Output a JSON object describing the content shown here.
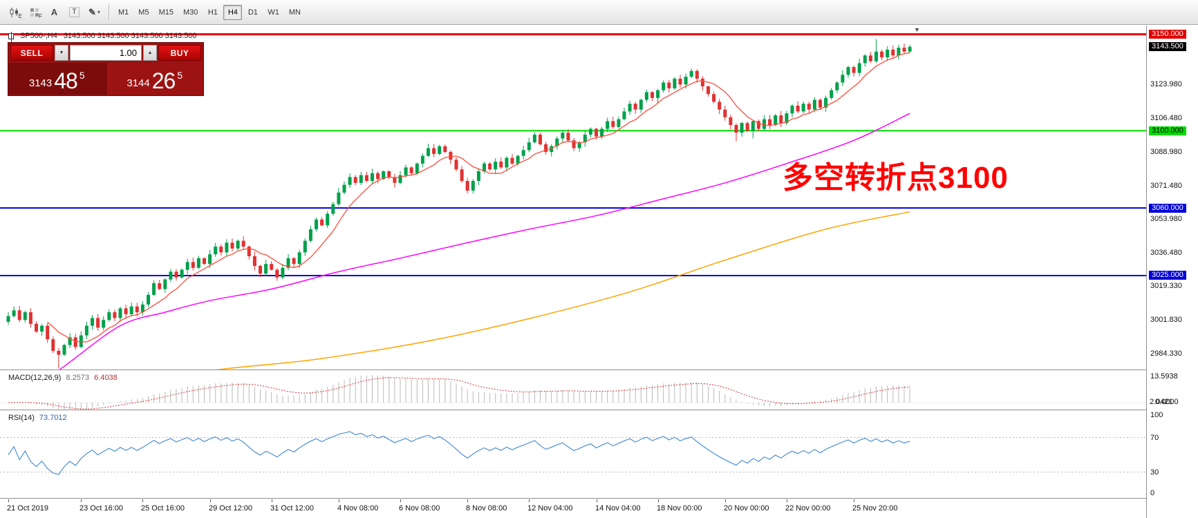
{
  "colors": {
    "up": "#00A14B",
    "down": "#E03232",
    "ma_fast": "#FF4B3A",
    "ma_mid": "#FF00FF",
    "ma_slow": "#FFA500",
    "macd_hist": "#B9B9B9",
    "macd_signal": "#D93030",
    "rsi_line": "#4C8FD6",
    "annotation": "#FF0000"
  },
  "toolbar": {
    "icons": [
      {
        "button": "chart-window-button",
        "icon": "candlestick-chart-icon",
        "glyph": "candles",
        "badge": "E"
      },
      {
        "button": "chart-grid-button",
        "icon": "grid-icon",
        "glyph": "grid",
        "badge": "F"
      },
      {
        "button": "text-annotation-button",
        "icon": "text-icon",
        "glyph": "A"
      },
      {
        "button": "text-box-button",
        "icon": "textbox-icon",
        "glyph": "T",
        "boxed": true
      },
      {
        "button": "drawing-tools-button",
        "icon": "pencil-icon",
        "glyph": "✎",
        "dropdown": true
      }
    ],
    "timeframes": [
      {
        "label": "M1"
      },
      {
        "label": "M5"
      },
      {
        "label": "M15"
      },
      {
        "label": "M30"
      },
      {
        "label": "H1"
      },
      {
        "label": "H4",
        "active": true
      },
      {
        "label": "D1"
      },
      {
        "label": "W1"
      },
      {
        "label": "MN"
      }
    ]
  },
  "chart_header": {
    "title": "SP500-,H4",
    "ohlc": "3143.500 3143.500 3143.500 3143.500"
  },
  "trade_panel": {
    "sell_label": "SELL",
    "buy_label": "BUY",
    "volume": "1.00",
    "down_glyph": "▼",
    "up_glyph": "▲",
    "sell_price_small": "3143",
    "sell_price_big": "48",
    "sell_price_sup": "5",
    "buy_price_small": "3144",
    "buy_price_big": "26",
    "buy_price_sup": "5"
  },
  "annotation": {
    "text": "多空转折点3100"
  },
  "indicator_labels": {
    "macd_title": "MACD(12,26,9)",
    "macd_value_main": "8.2573",
    "macd_value_signal": "6.4038",
    "rsi_title": "RSI(14)",
    "rsi_value": "73.7012"
  },
  "axes": {
    "price": [
      {
        "text": "3150.000",
        "price": 3150.0,
        "bg": "#E00000",
        "fg": "#FFFFFF"
      },
      {
        "text": "3143.500",
        "price": 3143.5,
        "bg": "#000000",
        "fg": "#FFFFFF"
      },
      {
        "text": "3123.980",
        "price": 3123.98
      },
      {
        "text": "3106.480",
        "price": 3106.48
      },
      {
        "text": "3100.000",
        "price": 3100.0,
        "bg": "#00DC00",
        "fg": "#000000"
      },
      {
        "text": "3088.980",
        "price": 3088.98
      },
      {
        "text": "3071.480",
        "price": 3071.48
      },
      {
        "text": "3060.000",
        "price": 3060.0,
        "bg": "#0000D8",
        "fg": "#FFFFFF"
      },
      {
        "text": "3053.980",
        "price": 3053.98
      },
      {
        "text": "3036.480",
        "price": 3036.48
      },
      {
        "text": "3025.000",
        "price": 3025.0,
        "bg": "#0000D8",
        "fg": "#FFFFFF"
      },
      {
        "text": "3019.330",
        "price": 3019.33
      },
      {
        "text": "3001.830",
        "price": 3001.83
      },
      {
        "text": "2984.330",
        "price": 2984.33
      }
    ],
    "macd": {
      "max": "13.5938",
      "zero": "0.0000",
      "min": "2.0421"
    },
    "rsi": [
      "100",
      "70",
      "30",
      "0"
    ]
  },
  "chart_data": {
    "type": "candlestick",
    "symbol": "SP500-",
    "timeframe": "H4",
    "current_price": 3143.5,
    "levels": [
      {
        "price": 3150.0,
        "color": "#F00000",
        "width": 3
      },
      {
        "price": 3100.0,
        "color": "#00DC00",
        "width": 2
      },
      {
        "price": 3060.0,
        "color": "#0000DC",
        "width": 2
      },
      {
        "price": 3025.0,
        "color": "#0000DC",
        "width": 2
      }
    ],
    "time_labels": [
      {
        "text": "21 Oct 2019",
        "bar": 0
      },
      {
        "text": "23 Oct 16:00",
        "bar": 13
      },
      {
        "text": "25 Oct 16:00",
        "bar": 24
      },
      {
        "text": "29 Oct 12:00",
        "bar": 36
      },
      {
        "text": "31 Oct 12:00",
        "bar": 47
      },
      {
        "text": "4 Nov 08:00",
        "bar": 59
      },
      {
        "text": "6 Nov 08:00",
        "bar": 70
      },
      {
        "text": "8 Nov 08:00",
        "bar": 82
      },
      {
        "text": "12 Nov 04:00",
        "bar": 93
      },
      {
        "text": "14 Nov 04:00",
        "bar": 105
      },
      {
        "text": "18 Nov 00:00",
        "bar": 116
      },
      {
        "text": "20 Nov 00:00",
        "bar": 128
      },
      {
        "text": "22 Nov 00:00",
        "bar": 139
      },
      {
        "text": "25 Nov 20:00",
        "bar": 151
      }
    ],
    "candles": {
      "closes": [
        3004,
        3007,
        3002,
        3006,
        3000,
        2996,
        2999,
        2992,
        2986,
        2984,
        2989,
        2993,
        2988,
        2994,
        2999,
        3003,
        2998,
        3002,
        3006,
        3003,
        3008,
        3005,
        3009,
        3006,
        3010,
        3015,
        3021,
        3018,
        3023,
        3027,
        3024,
        3028,
        3032,
        3029,
        3034,
        3031,
        3036,
        3040,
        3037,
        3042,
        3039,
        3043,
        3040,
        3035,
        3030,
        3026,
        3031,
        3028,
        3024,
        3029,
        3034,
        3031,
        3037,
        3043,
        3049,
        3054,
        3051,
        3057,
        3062,
        3068,
        3072,
        3076,
        3073,
        3077,
        3074,
        3078,
        3075,
        3079,
        3076,
        3073,
        3077,
        3081,
        3078,
        3083,
        3087,
        3091,
        3088,
        3092,
        3089,
        3085,
        3080,
        3074,
        3069,
        3074,
        3079,
        3083,
        3080,
        3084,
        3081,
        3086,
        3083,
        3087,
        3090,
        3094,
        3098,
        3093,
        3089,
        3092,
        3096,
        3099,
        3095,
        3091,
        3094,
        3098,
        3101,
        3097,
        3101,
        3105,
        3102,
        3106,
        3110,
        3114,
        3111,
        3116,
        3120,
        3117,
        3121,
        3125,
        3122,
        3127,
        3124,
        3128,
        3131,
        3127,
        3123,
        3119,
        3115,
        3111,
        3107,
        3103,
        3099,
        3104,
        3100,
        3105,
        3101,
        3106,
        3103,
        3108,
        3104,
        3109,
        3113,
        3110,
        3114,
        3111,
        3116,
        3112,
        3117,
        3121,
        3125,
        3129,
        3133,
        3130,
        3135,
        3139,
        3136,
        3141,
        3138,
        3142,
        3139,
        3143,
        3141,
        3143.5
      ],
      "wick_high_overrides": {
        "155": 3147.5,
        "161": 3144.6
      },
      "wick_low_overrides": {
        "9": 2977,
        "130": 3094.5,
        "133": 3096
      }
    },
    "moving_averages": {
      "fast_period": 8,
      "mid_points": [
        [
          4,
          2966
        ],
        [
          10,
          2978
        ],
        [
          20,
          2999
        ],
        [
          28,
          3006
        ],
        [
          36,
          3012
        ],
        [
          47,
          3018
        ],
        [
          59,
          3027
        ],
        [
          70,
          3034
        ],
        [
          82,
          3042
        ],
        [
          93,
          3049
        ],
        [
          105,
          3056
        ],
        [
          116,
          3064
        ],
        [
          128,
          3073
        ],
        [
          139,
          3083
        ],
        [
          151,
          3095
        ],
        [
          161,
          3109
        ]
      ],
      "slow_points": [
        [
          18,
          2958
        ],
        [
          33,
          2974
        ],
        [
          56,
          2982
        ],
        [
          80,
          2994
        ],
        [
          108,
          3014
        ],
        [
          128,
          3033
        ],
        [
          146,
          3049
        ],
        [
          161,
          3058
        ]
      ]
    },
    "macd": {
      "fast": 12,
      "slow": 26,
      "signal": 9,
      "current_main": 8.2573,
      "current_signal": 6.4038,
      "axis_max": 13.5938
    },
    "rsi": {
      "period": 14,
      "current": 73.7012,
      "levels": [
        70,
        30
      ]
    }
  }
}
